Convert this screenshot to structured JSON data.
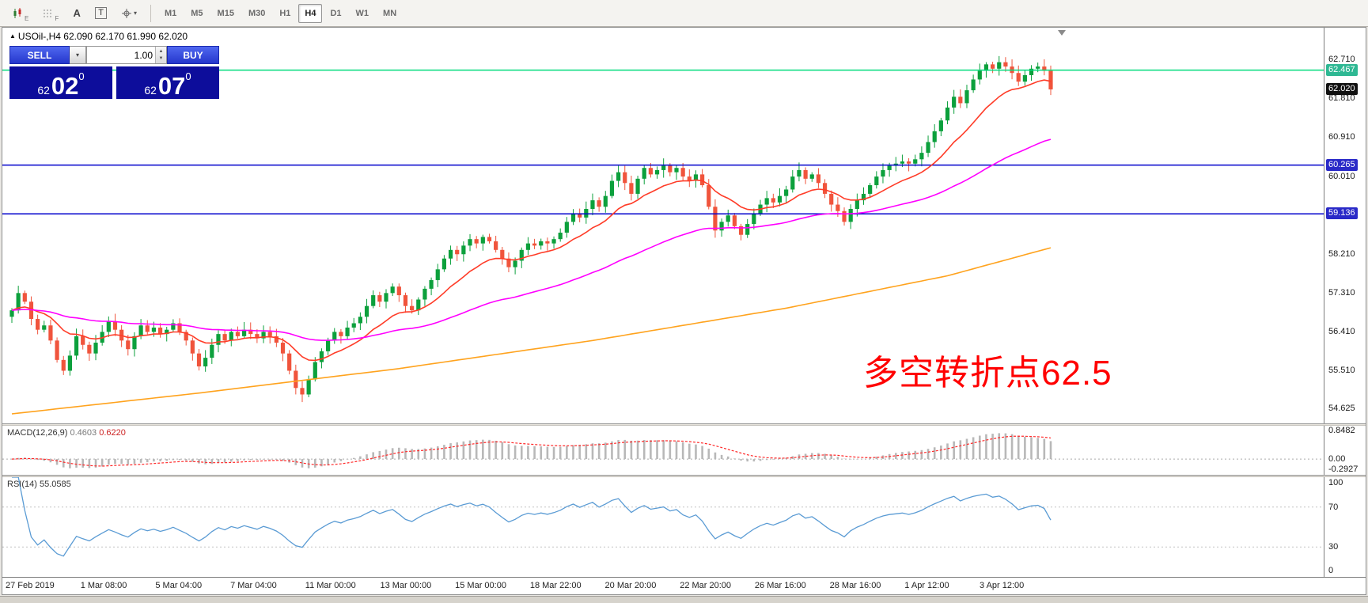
{
  "toolbar": {
    "tool_icons": [
      {
        "kind": "candles",
        "name": "candlestick-chart-icon",
        "sub": "E"
      },
      {
        "kind": "grid",
        "name": "grid-icon",
        "sub": "F"
      },
      {
        "kind": "letter",
        "name": "cursor-icon",
        "label": "A"
      },
      {
        "kind": "boxed",
        "name": "text-tool-icon",
        "label": "T"
      },
      {
        "kind": "draw",
        "name": "crosshair-draw-icon",
        "caret": "▾"
      }
    ],
    "timeframes": [
      "M1",
      "M5",
      "M15",
      "M30",
      "H1",
      "H4",
      "D1",
      "W1",
      "MN"
    ],
    "active_timeframe": "H4"
  },
  "chart_header": {
    "glyph": "▲",
    "symbol": "USOil-,H4",
    "ohlc": "62.090 62.170 61.990 62.020"
  },
  "trade_panel": {
    "sell_label": "SELL",
    "buy_label": "BUY",
    "volume": "1.00",
    "sell_price": {
      "prefix": "62",
      "big": "02",
      "sup": "0"
    },
    "buy_price": {
      "prefix": "62",
      "big": "07",
      "sup": "0"
    }
  },
  "annotation": {
    "text": "多空转折点62.5",
    "color": "#ff0000"
  },
  "chart_data": {
    "type": "candlestick",
    "symbol": "USOil-",
    "timeframe": "H4",
    "title": "USOil-,H4",
    "ohlc_display": {
      "open": 62.09,
      "high": 62.17,
      "low": 61.99,
      "close": 62.02
    },
    "first_open": 56.75,
    "closes": [
      56.9,
      57.3,
      57.1,
      56.7,
      56.45,
      56.55,
      56.2,
      55.75,
      55.5,
      55.85,
      56.3,
      56.1,
      55.9,
      56.15,
      56.4,
      56.65,
      56.45,
      56.2,
      56.0,
      56.3,
      56.55,
      56.4,
      56.5,
      56.35,
      56.45,
      56.6,
      56.4,
      56.2,
      55.9,
      55.6,
      55.8,
      56.1,
      56.35,
      56.2,
      56.4,
      56.3,
      56.45,
      56.35,
      56.25,
      56.4,
      56.3,
      56.15,
      55.9,
      55.5,
      55.1,
      54.95,
      55.3,
      55.7,
      55.95,
      56.2,
      56.4,
      56.3,
      56.5,
      56.6,
      56.75,
      57.0,
      57.25,
      57.1,
      57.3,
      57.45,
      57.25,
      57.0,
      56.9,
      57.15,
      57.4,
      57.6,
      57.85,
      58.1,
      58.3,
      58.2,
      58.4,
      58.55,
      58.45,
      58.6,
      58.5,
      58.3,
      58.1,
      57.9,
      58.05,
      58.3,
      58.45,
      58.4,
      58.5,
      58.45,
      58.55,
      58.7,
      58.95,
      59.15,
      59.05,
      59.25,
      59.45,
      59.3,
      59.55,
      59.9,
      60.1,
      59.85,
      59.6,
      59.95,
      60.2,
      60.05,
      60.15,
      60.25,
      60.1,
      60.2,
      60.0,
      59.9,
      60.05,
      59.8,
      59.3,
      58.75,
      58.95,
      59.1,
      58.85,
      58.65,
      58.9,
      59.15,
      59.35,
      59.5,
      59.4,
      59.55,
      59.7,
      60.0,
      60.15,
      59.95,
      60.05,
      59.85,
      59.6,
      59.35,
      59.2,
      58.95,
      59.25,
      59.45,
      59.6,
      59.8,
      60.0,
      60.15,
      60.25,
      60.3,
      60.35,
      60.3,
      60.4,
      60.55,
      60.8,
      61.05,
      61.3,
      61.6,
      61.85,
      61.7,
      62.0,
      62.25,
      62.45,
      62.6,
      62.5,
      62.65,
      62.55,
      62.4,
      62.2,
      62.35,
      62.5,
      62.55,
      62.45,
      62.02
    ],
    "y_range": [
      54.28,
      63.45
    ],
    "y_axis_labels": [
      62.71,
      61.81,
      60.91,
      60.01,
      58.21,
      57.31,
      56.41,
      55.51,
      54.625
    ],
    "price_lines": [
      {
        "value": 62.467,
        "color": "#00dc7d",
        "badge": "#2eb893"
      },
      {
        "value": 60.265,
        "color": "#0000cc",
        "badge": "#2a2ac8"
      },
      {
        "value": 59.136,
        "color": "#0000cc",
        "badge": "#2a2ac8"
      }
    ],
    "current_price": {
      "value": 62.02,
      "badge": "#111111"
    },
    "moving_averages": [
      {
        "name": "fast",
        "period": 13,
        "color": "#ff3c28"
      },
      {
        "name": "medium",
        "period": 55,
        "color": "#ff00ff"
      },
      {
        "name": "slow",
        "color": "#ffa31e"
      }
    ],
    "ma_slow_waypoints": [
      [
        0,
        54.5
      ],
      [
        30,
        55.0
      ],
      [
        60,
        55.55
      ],
      [
        90,
        56.2
      ],
      [
        120,
        56.95
      ],
      [
        145,
        57.7
      ],
      [
        161,
        58.35
      ]
    ],
    "x_axis_labels": [
      "27 Feb 2019",
      "1 Mar 08:00",
      "5 Mar 04:00",
      "7 Mar 04:00",
      "11 Mar 00:00",
      "13 Mar 00:00",
      "15 Mar 00:00",
      "18 Mar 22:00",
      "20 Mar 20:00",
      "22 Mar 20:00",
      "26 Mar 16:00",
      "28 Mar 16:00",
      "1 Apr 12:00",
      "3 Apr 12:00"
    ],
    "macd": {
      "name": "MACD(12,26,9)",
      "value_main": "0.4603",
      "value_signal": "0.6220",
      "params": [
        12,
        26,
        9
      ],
      "range": [
        -0.45,
        0.95
      ],
      "axis_labels": [
        {
          "text": "0.8482",
          "value": 0.8482
        },
        {
          "text": "0.00",
          "value": 0
        },
        {
          "text": "-0.2927",
          "value": -0.2927
        }
      ]
    },
    "rsi": {
      "name": "RSI(14)",
      "value": "55.0585",
      "period": 14,
      "levels": [
        70,
        30
      ],
      "range": [
        0,
        100
      ],
      "axis_labels": [
        {
          "text": "100",
          "value": 100
        },
        {
          "text": "70",
          "value": 70
        },
        {
          "text": "30",
          "value": 30
        },
        {
          "text": "0",
          "value": 0
        }
      ]
    },
    "colors": {
      "up": "#0ca03c",
      "down": "#f0543c",
      "macd_hist": "#b8b8b8",
      "macd_signal": "#ff2a2a",
      "rsi": "#5a9bd4"
    }
  }
}
